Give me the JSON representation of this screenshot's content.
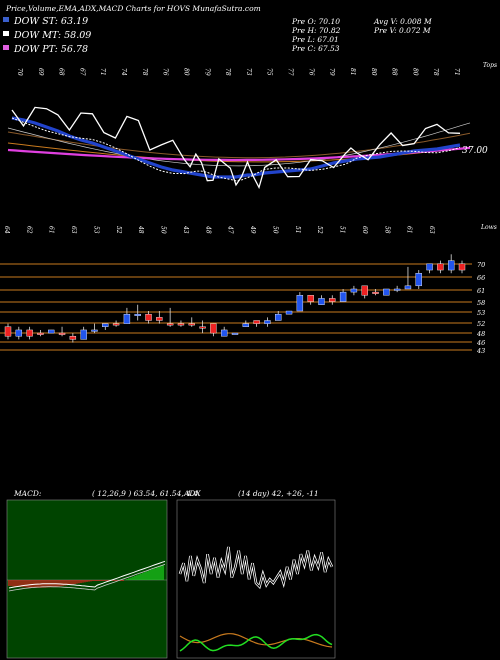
{
  "header": {
    "title": "Price,Volume,EMA,ADX,MACD Charts for HOVS MunafaSutra.com",
    "ema_labels": [
      {
        "text": "DOW ST: 63.19",
        "color": "#3a5fcd"
      },
      {
        "text": "DOW MT: 58.09",
        "color": "#ffffff"
      },
      {
        "text": "DOW PT: 56.78",
        "color": "#e060e0"
      }
    ],
    "stats_left": [
      "Pre  O: 70.10",
      "Pre  H: 70.82",
      "Pre  L: 67.01",
      "Pre  C: 67.53"
    ],
    "stats_right": [
      "Avg V: 0.008 M",
      "Pre  V: 0.072  M"
    ]
  },
  "colors": {
    "up": "#2255ee",
    "down": "#ee2222",
    "ema_short": "#2244cc",
    "ema_mid": "#ffffff",
    "ema_long": "#e040e0",
    "orange": "#c87a1e",
    "macd_green": "#22dd22",
    "adx_white": "#ffffff",
    "adx_orange": "#c87a1e",
    "adx_green": "#22dd22"
  },
  "chart_data": [
    {
      "type": "line",
      "name": "ema-panel",
      "top_axis_labels": [
        "70",
        "69",
        "68",
        "67",
        "71",
        "74",
        "78",
        "76",
        "80",
        "79",
        "78",
        "73",
        "75",
        "77",
        "76",
        "79",
        "81",
        "80",
        "88",
        "80",
        "78",
        "71"
      ],
      "top_axis_end": "Tops",
      "current_value_label": "37.00",
      "x": [
        0,
        1,
        2,
        3,
        4,
        5,
        6,
        7,
        8,
        9,
        10,
        11,
        12,
        13,
        14,
        15,
        15.5,
        16,
        16.5,
        17,
        17.5,
        18,
        19,
        19.5,
        20,
        20.5,
        21,
        21.5,
        22,
        23,
        24,
        25,
        26,
        27,
        28,
        29,
        29.5,
        30,
        31,
        32,
        33,
        34,
        35,
        36,
        37,
        38,
        39
      ],
      "series": [
        {
          "key": "price",
          "values": [
            110,
            116,
            110,
            118,
            110,
            122,
            120,
            120,
            124,
            134,
            126,
            122,
            140,
            146,
            150,
            156,
            158,
            160,
            170,
            173,
            175,
            168,
            171,
            175,
            176,
            172,
            174,
            178,
            172,
            168,
            170,
            170,
            168,
            165,
            158,
            152,
            158,
            152,
            150,
            148,
            142,
            140,
            136,
            136,
            130,
            124,
            130
          ]
        },
        {
          "key": "ema_short",
          "values": [
            118,
            120,
            123,
            127,
            131,
            136,
            140,
            143,
            147,
            151,
            155,
            159,
            163,
            167,
            170,
            172,
            173,
            174,
            175,
            176,
            177,
            177,
            177,
            177,
            176,
            175,
            175,
            174,
            173,
            172,
            171,
            170,
            169,
            166,
            163,
            161,
            160,
            159,
            158,
            157,
            155,
            153,
            151,
            150,
            149,
            147,
            145
          ]
        }
      ],
      "ylim": [
        100,
        190
      ]
    },
    {
      "type": "bar",
      "name": "candles",
      "top_axis_labels": [
        "64",
        "62",
        "61",
        "63",
        "53",
        "52",
        "48",
        "50",
        "43",
        "48",
        "47",
        "49",
        "50",
        "51",
        "52",
        "51",
        "60",
        "58",
        "61",
        "63"
      ],
      "top_axis_end": "Lows",
      "y_ticks": [
        "70",
        "66",
        "61",
        "58",
        "53",
        "52",
        "48",
        "46",
        "43"
      ],
      "candles": [
        {
          "o": 50,
          "c": 47,
          "h": 51,
          "l": 46,
          "up": false
        },
        {
          "o": 47,
          "c": 49,
          "h": 50,
          "l": 46,
          "up": true
        },
        {
          "o": 49,
          "c": 47,
          "h": 50,
          "l": 46,
          "up": false
        },
        {
          "o": 48,
          "c": 48,
          "h": 49,
          "l": 47,
          "up": false
        },
        {
          "o": 48,
          "c": 49,
          "h": 49,
          "l": 48,
          "up": true
        },
        {
          "o": 48,
          "c": 48,
          "h": 50,
          "l": 47,
          "up": false
        },
        {
          "o": 47,
          "c": 46,
          "h": 48,
          "l": 45,
          "up": false
        },
        {
          "o": 46,
          "c": 49,
          "h": 50,
          "l": 46,
          "up": true
        },
        {
          "o": 49,
          "c": 49,
          "h": 51,
          "l": 48,
          "up": true
        },
        {
          "o": 50,
          "c": 51,
          "h": 51,
          "l": 49,
          "up": true
        },
        {
          "o": 51,
          "c": 51,
          "h": 52,
          "l": 50,
          "up": false
        },
        {
          "o": 51,
          "c": 54,
          "h": 56,
          "l": 51,
          "up": true
        },
        {
          "o": 54,
          "c": 54,
          "h": 57,
          "l": 52,
          "up": true
        },
        {
          "o": 54,
          "c": 52,
          "h": 55,
          "l": 51,
          "up": false
        },
        {
          "o": 53,
          "c": 52,
          "h": 55,
          "l": 51,
          "up": false
        },
        {
          "o": 51,
          "c": 51,
          "h": 56,
          "l": 50,
          "up": false
        },
        {
          "o": 51,
          "c": 51,
          "h": 52,
          "l": 50,
          "up": false
        },
        {
          "o": 51,
          "c": 51,
          "h": 53,
          "l": 50,
          "up": false
        },
        {
          "o": 50,
          "c": 50,
          "h": 52,
          "l": 48,
          "up": false
        },
        {
          "o": 51,
          "c": 48,
          "h": 51,
          "l": 47,
          "up": false
        },
        {
          "o": 47,
          "c": 49,
          "h": 50,
          "l": 47,
          "up": true
        },
        {
          "o": 48,
          "c": 48,
          "h": 48,
          "l": 48,
          "up": true
        },
        {
          "o": 50,
          "c": 51,
          "h": 52,
          "l": 50,
          "up": true
        },
        {
          "o": 52,
          "c": 51,
          "h": 52,
          "l": 50,
          "up": false
        },
        {
          "o": 51,
          "c": 52,
          "h": 53,
          "l": 50,
          "up": true
        },
        {
          "o": 52,
          "c": 54,
          "h": 55,
          "l": 52,
          "up": true
        },
        {
          "o": 54,
          "c": 55,
          "h": 55,
          "l": 54,
          "up": true
        },
        {
          "o": 55,
          "c": 60,
          "h": 61,
          "l": 55,
          "up": true
        },
        {
          "o": 60,
          "c": 58,
          "h": 60,
          "l": 57,
          "up": false
        },
        {
          "o": 57,
          "c": 59,
          "h": 60,
          "l": 57,
          "up": true
        },
        {
          "o": 59,
          "c": 58,
          "h": 60,
          "l": 57,
          "up": false
        },
        {
          "o": 58,
          "c": 61,
          "h": 62,
          "l": 58,
          "up": true
        },
        {
          "o": 61,
          "c": 62,
          "h": 63,
          "l": 60,
          "up": true
        },
        {
          "o": 63,
          "c": 60,
          "h": 63,
          "l": 59,
          "up": false
        },
        {
          "o": 61,
          "c": 61,
          "h": 62,
          "l": 60,
          "up": false
        },
        {
          "o": 60,
          "c": 62,
          "h": 62,
          "l": 60,
          "up": true
        },
        {
          "o": 62,
          "c": 62,
          "h": 63,
          "l": 61,
          "up": true
        },
        {
          "o": 62,
          "c": 63,
          "h": 69,
          "l": 62,
          "up": true
        },
        {
          "o": 63,
          "c": 67,
          "h": 68,
          "l": 62,
          "up": true
        },
        {
          "o": 68,
          "c": 70,
          "h": 70,
          "l": 67,
          "up": true
        },
        {
          "o": 70,
          "c": 68,
          "h": 71,
          "l": 67,
          "up": false
        },
        {
          "o": 68,
          "c": 71,
          "h": 73,
          "l": 67,
          "up": true
        },
        {
          "o": 70,
          "c": 68,
          "h": 71,
          "l": 67,
          "up": false
        }
      ],
      "ylim": [
        42,
        75
      ]
    },
    {
      "type": "bar",
      "name": "macd",
      "label": "MACD:",
      "params": "( 12,26,9 ) 63.54,  61.54,  4.4",
      "histogram": [
        -2,
        -2,
        -2,
        -2,
        -2,
        -2,
        -2,
        -2,
        -2,
        -2,
        -2,
        -2,
        -2,
        -2,
        -2,
        -2,
        -2,
        -2,
        -2,
        -2,
        -2,
        -2,
        -2,
        -2,
        -2,
        -2,
        -2,
        -2,
        -2,
        -2,
        -2,
        -2,
        -2,
        -2,
        -2,
        -2,
        -2,
        -2,
        -2,
        -2,
        -2,
        -2,
        -2,
        -2,
        -2,
        -2,
        -2,
        -2,
        -2,
        -2,
        -2,
        -2,
        -2,
        -2,
        -2,
        -2,
        -2,
        -2,
        -2,
        -2,
        -2,
        -2,
        -2,
        -2,
        -2,
        -2,
        -2,
        -2,
        -2,
        -2,
        -2,
        -2,
        -2,
        -2,
        -2,
        -2,
        -2,
        -2,
        -2,
        -2,
        -2,
        -2,
        -2,
        -2,
        -2,
        -2,
        -2,
        -2,
        -2,
        -2,
        -2,
        -2,
        -2,
        -2,
        -2,
        -2,
        -2,
        -2,
        -2,
        -2
      ],
      "ylim": [
        -10,
        10
      ]
    },
    {
      "type": "line",
      "name": "adx",
      "label": "ADX",
      "params": "(14 day) 42,  +26,  -11",
      "ylim": [
        0,
        100
      ]
    }
  ]
}
